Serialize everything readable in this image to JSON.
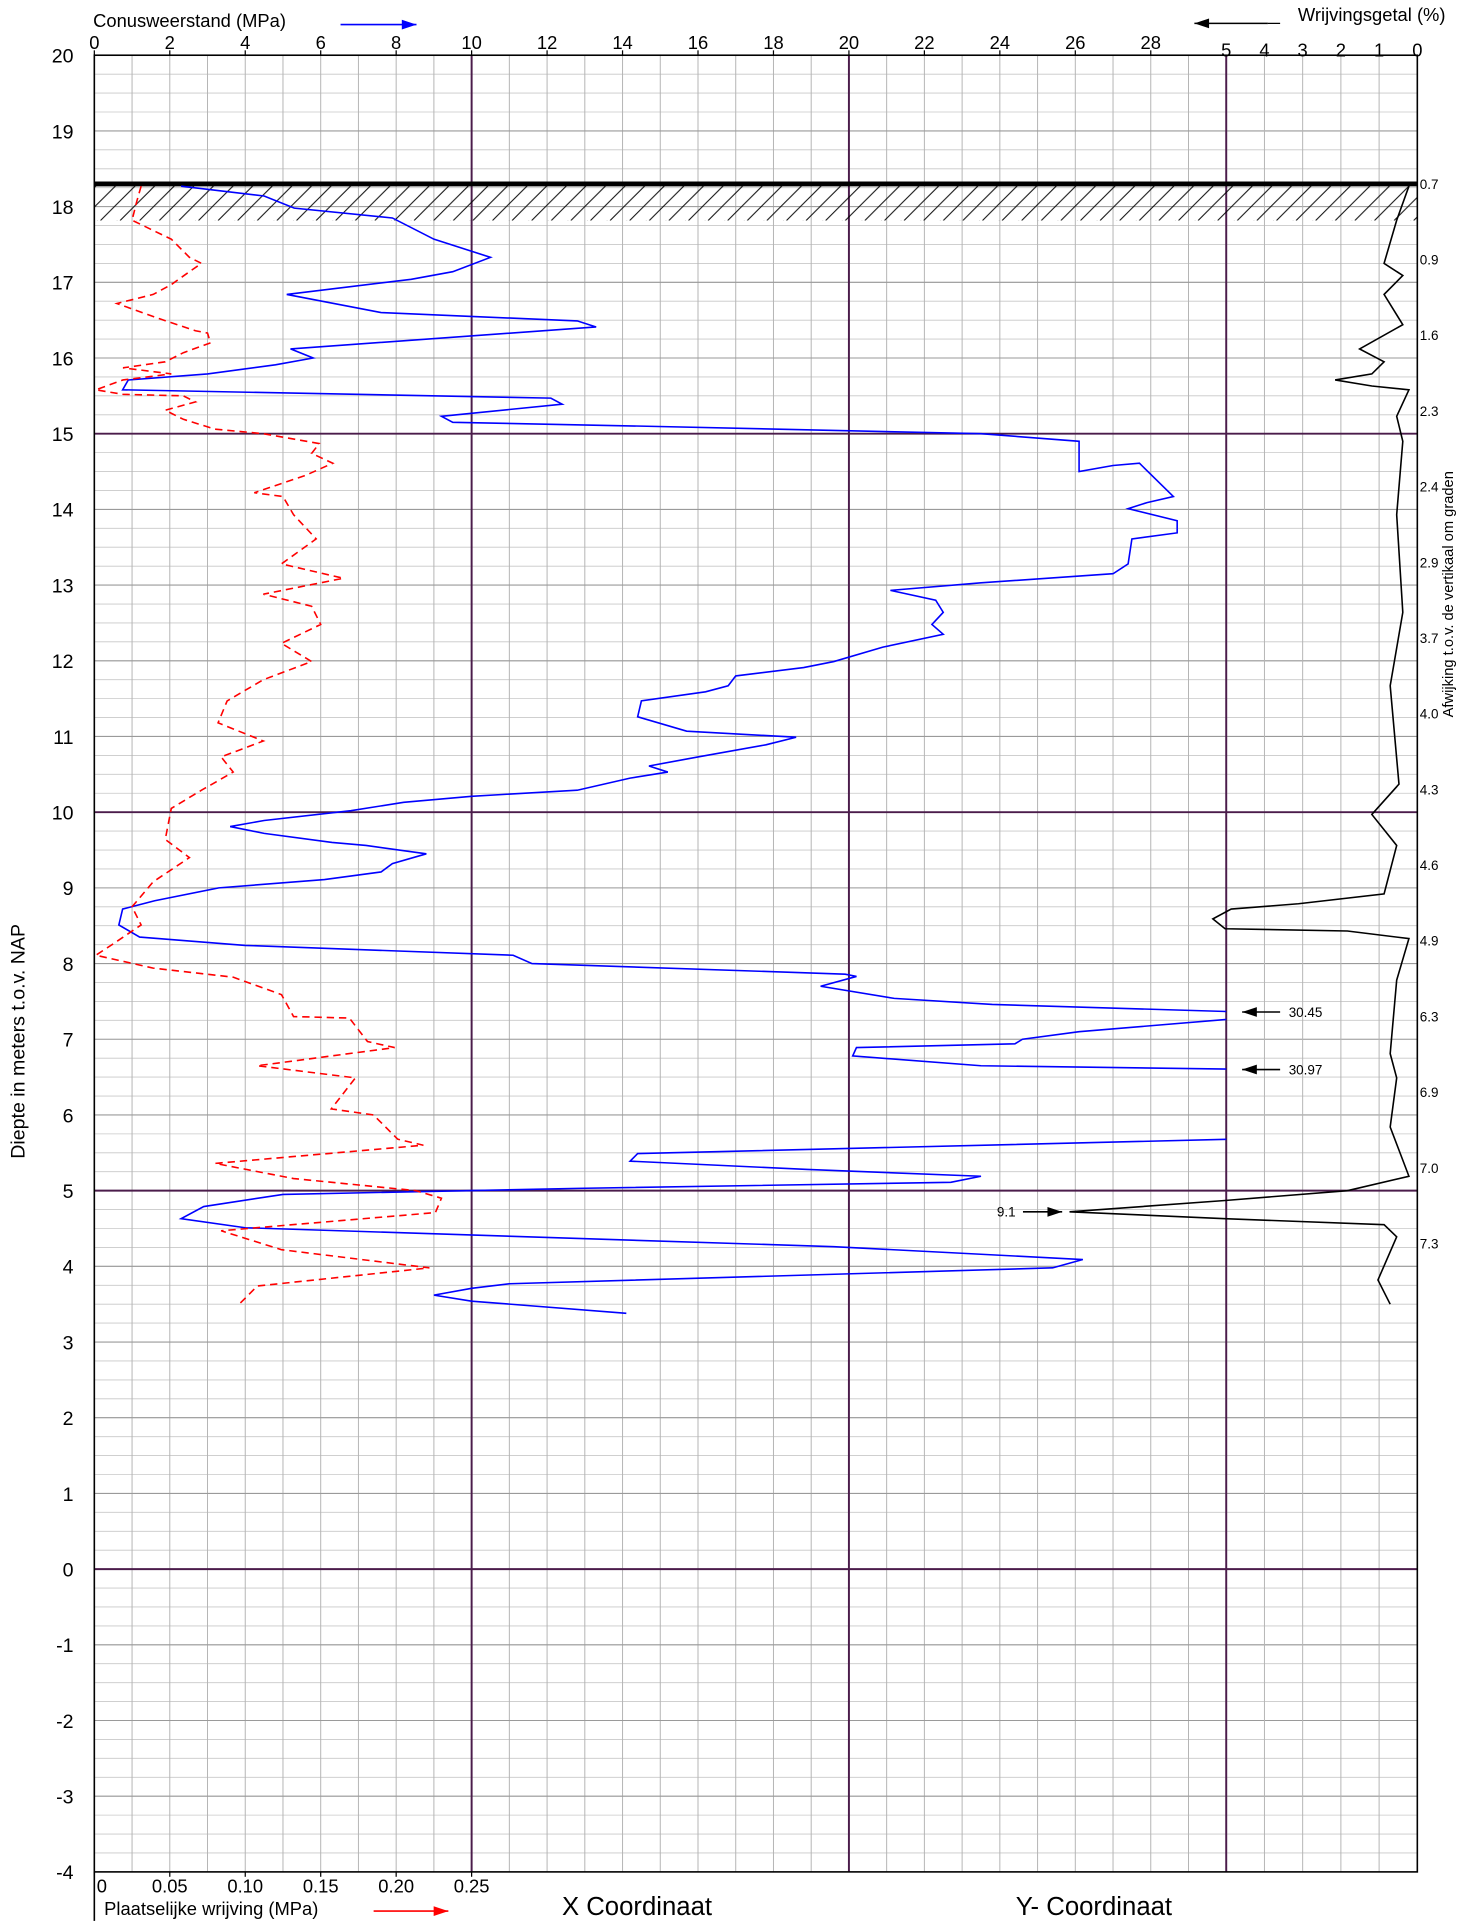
{
  "chart_data": {
    "type": "cpt",
    "y_label": "Diepte in meters t.o.v.  NAP",
    "ylim": [
      -4,
      20
    ],
    "yticks": [
      -4,
      -3,
      -2,
      -1,
      0,
      1,
      2,
      3,
      4,
      5,
      6,
      7,
      8,
      9,
      10,
      11,
      12,
      13,
      14,
      15,
      16,
      17,
      18,
      19,
      20
    ],
    "xlim": [
      0,
      30
    ],
    "xticks": [
      0,
      2,
      4,
      6,
      8,
      10,
      12,
      14,
      16,
      18,
      20,
      22,
      24,
      26,
      28
    ],
    "x2lim": [
      0,
      0.25
    ],
    "x2ticks": [
      0,
      0.05,
      {
        "value": 0.1,
        "label": "0.10"
      },
      0.15,
      {
        "value": 0.2,
        "label": "0.20"
      },
      0.25
    ],
    "x3lim": [
      5,
      0
    ],
    "x3ticks": [
      5,
      4,
      3,
      2,
      1,
      0
    ],
    "minor_grid": {
      "x": 1,
      "y": 0.25
    },
    "major_grid": {
      "x": 10,
      "y": 5
    },
    "ground_level": 18.3,
    "series": [
      {
        "name": "Conusweerstand (MPa)",
        "color": "#0000ff",
        "axis": "x",
        "dashed": false,
        "x": [
          2.3,
          4.5,
          5.3,
          7.9,
          9.0,
          10.5,
          9.5,
          8.4,
          5.1,
          7.6,
          12.8,
          13.3,
          5.2,
          5.8,
          4.8,
          3.0,
          0.9,
          0.75,
          12.1,
          12.4,
          9.2,
          9.5,
          14.5,
          23.5,
          26.1,
          26.1,
          27.0,
          27.7,
          28.6,
          27.9,
          27.4,
          28.7,
          28.7,
          27.5,
          27.4,
          27.0,
          23.5,
          21.1,
          22.3,
          22.5,
          22.2,
          22.5,
          20.9,
          19.6,
          18.8,
          17.0,
          16.8,
          16.2,
          14.5,
          14.4,
          15.7,
          18.6,
          17.8,
          16.0,
          14.7,
          15.2,
          14.2,
          12.8,
          10.0,
          8.2,
          6.8,
          4.5,
          3.6,
          4.5,
          6.3,
          7.2,
          8.8,
          7.9,
          7.6,
          6.1,
          3.3,
          1.6,
          0.75,
          0.65,
          1.2,
          4.0,
          11.1,
          11.6,
          19.9,
          20.2,
          19.25,
          21.2,
          23.8,
          30.45,
          30.2,
          26.1,
          24.6,
          24.4,
          20.2,
          20.1,
          23.5,
          30.97,
          30.2,
          14.4,
          14.2,
          18.9,
          23.5,
          22.7,
          12.8,
          5.0,
          2.9,
          2.3,
          4.0,
          19.6,
          26.2,
          25.4,
          11.0,
          10.0,
          9.0,
          10.0,
          14.1
        ],
        "y": [
          18.27,
          18.14,
          17.98,
          17.85,
          17.57,
          17.33,
          17.14,
          17.04,
          16.84,
          16.6,
          16.49,
          16.41,
          16.12,
          16.0,
          15.91,
          15.79,
          15.71,
          15.58,
          15.47,
          15.39,
          15.23,
          15.15,
          15.1,
          15.0,
          14.9,
          14.5,
          14.58,
          14.61,
          14.17,
          14.09,
          14.01,
          13.85,
          13.69,
          13.61,
          13.28,
          13.15,
          13.03,
          12.93,
          12.8,
          12.64,
          12.48,
          12.35,
          12.18,
          11.99,
          11.91,
          11.8,
          11.67,
          11.59,
          11.47,
          11.26,
          11.07,
          10.99,
          10.89,
          10.73,
          10.61,
          10.53,
          10.45,
          10.29,
          10.21,
          10.13,
          10.02,
          9.89,
          9.81,
          9.72,
          9.6,
          9.56,
          9.45,
          9.32,
          9.21,
          9.11,
          9.0,
          8.83,
          8.72,
          8.51,
          8.35,
          8.24,
          8.11,
          8.0,
          7.86,
          7.83,
          7.7,
          7.54,
          7.46,
          7.36,
          7.27,
          7.1,
          7.0,
          6.94,
          6.89,
          6.78,
          6.65,
          6.6,
          5.68,
          5.49,
          5.39,
          5.28,
          5.19,
          5.11,
          5.03,
          4.95,
          4.79,
          4.63,
          4.51,
          4.26,
          4.09,
          3.98,
          3.77,
          3.71,
          3.62,
          3.54,
          3.38
        ]
      },
      {
        "name": "Plaatselijke wrijving (MPa)",
        "color": "#ff0000",
        "axis": "x2",
        "dashed": true,
        "x": [
          0.031,
          0.028,
          0.025,
          0.051,
          0.063,
          0.071,
          0.063,
          0.051,
          0.039,
          0.015,
          0.043,
          0.067,
          0.075,
          0.077,
          0.059,
          0.047,
          0.019,
          0.051,
          0.019,
          0.001,
          0.019,
          0.059,
          0.067,
          0.047,
          0.059,
          0.08,
          0.112,
          0.149,
          0.144,
          0.158,
          0.14,
          0.106,
          0.125,
          0.132,
          0.147,
          0.124,
          0.165,
          0.112,
          0.144,
          0.15,
          0.124,
          0.144,
          0.112,
          0.088,
          0.082,
          0.112,
          0.084,
          0.092,
          0.071,
          0.051,
          0.047,
          0.063,
          0.039,
          0.025,
          0.031,
          0.011,
          0.001,
          0.039,
          0.092,
          0.124,
          0.132,
          0.169,
          0.181,
          0.199,
          0.108,
          0.173,
          0.157,
          0.185,
          0.201,
          0.218,
          0.08,
          0.132,
          0.213,
          0.23,
          0.226,
          0.084,
          0.124,
          0.222,
          0.108,
          0.096
        ],
        "y": [
          18.27,
          18.06,
          17.82,
          17.57,
          17.33,
          17.25,
          17.14,
          16.97,
          16.84,
          16.72,
          16.52,
          16.36,
          16.33,
          16.2,
          16.07,
          15.95,
          15.87,
          15.79,
          15.71,
          15.58,
          15.52,
          15.5,
          15.42,
          15.31,
          15.19,
          15.06,
          15.0,
          14.87,
          14.74,
          14.61,
          14.45,
          14.22,
          14.17,
          13.93,
          13.61,
          13.28,
          13.09,
          12.88,
          12.72,
          12.48,
          12.23,
          11.99,
          11.75,
          11.47,
          11.18,
          10.94,
          10.73,
          10.53,
          10.29,
          10.05,
          9.64,
          9.4,
          9.08,
          8.75,
          8.51,
          8.24,
          8.11,
          7.94,
          7.82,
          7.59,
          7.3,
          7.28,
          6.97,
          6.89,
          6.65,
          6.49,
          6.08,
          6.0,
          5.68,
          5.6,
          5.36,
          5.16,
          5.0,
          4.9,
          4.71,
          4.47,
          4.22,
          3.98,
          3.74,
          3.5
        ]
      },
      {
        "name": "Wrijvingsgetal (%)",
        "color": "#000000",
        "axis": "x3",
        "dashed": false,
        "x": [
          0.22,
          0.54,
          0.87,
          0.38,
          0.87,
          0.38,
          1.51,
          0.87,
          1.19,
          2.15,
          1.19,
          0.22,
          0.54,
          0.38,
          0.54,
          0.38,
          0.71,
          0.48,
          1.19,
          0.54,
          0.87,
          3.11,
          4.87,
          5.35,
          5.03,
          1.83,
          0.22,
          0.54,
          0.71,
          0.54,
          0.71,
          0.22,
          1.83,
          5.03,
          9.1,
          5.03,
          0.87,
          0.54,
          1.03,
          0.71
        ],
        "y": [
          18.27,
          17.82,
          17.25,
          17.09,
          16.84,
          16.44,
          16.12,
          15.95,
          15.79,
          15.71,
          15.63,
          15.58,
          15.23,
          14.9,
          13.93,
          12.64,
          11.67,
          10.37,
          9.97,
          9.56,
          8.92,
          8.79,
          8.72,
          8.59,
          8.46,
          8.43,
          8.33,
          7.78,
          6.81,
          6.49,
          5.84,
          5.19,
          5.0,
          4.87,
          4.72,
          4.63,
          4.55,
          4.39,
          3.82,
          3.5
        ]
      }
    ],
    "annotations": [
      {
        "series": 0,
        "value": 30.45,
        "depth": 7.36
      },
      {
        "series": 0,
        "value": 30.97,
        "depth": 6.6
      },
      {
        "series": 2,
        "value": 9.1,
        "depth": 4.72
      }
    ],
    "deviation": {
      "label": "Afwijking t.o.v. de vertikaal om graden",
      "depths": [
        18.3,
        17.3,
        16.3,
        15.3,
        14.3,
        13.3,
        12.3,
        11.3,
        10.3,
        9.3,
        8.3,
        7.3,
        6.3,
        5.3,
        4.3
      ],
      "values": [
        0.7,
        0.9,
        1.6,
        2.3,
        2.4,
        2.9,
        3.7,
        {
          "value": 4.0,
          "label": "4.0"
        },
        4.3,
        4.6,
        4.9,
        6.3,
        6.9,
        {
          "value": 7.0,
          "label": "7.0"
        },
        7.3
      ]
    },
    "footer": {
      "x_coordinate": "X Coordinaat",
      "y_coordinate": "Y- Coordinaat"
    }
  }
}
